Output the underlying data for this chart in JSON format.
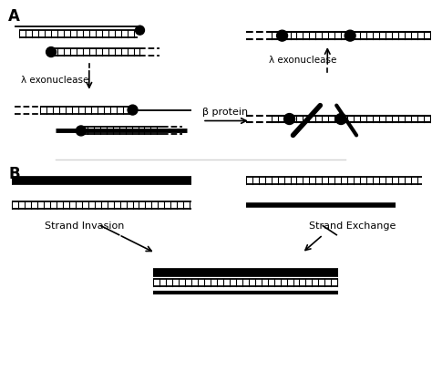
{
  "background_color": "#ffffff",
  "label_A": "A",
  "label_B": "B",
  "lambda_exo_left": "λ exonuclease",
  "lambda_exo_right": "λ exonuclease",
  "beta_protein": "β protein",
  "strand_invasion": "Strand Invasion",
  "strand_exchange": "Strand Exchange"
}
